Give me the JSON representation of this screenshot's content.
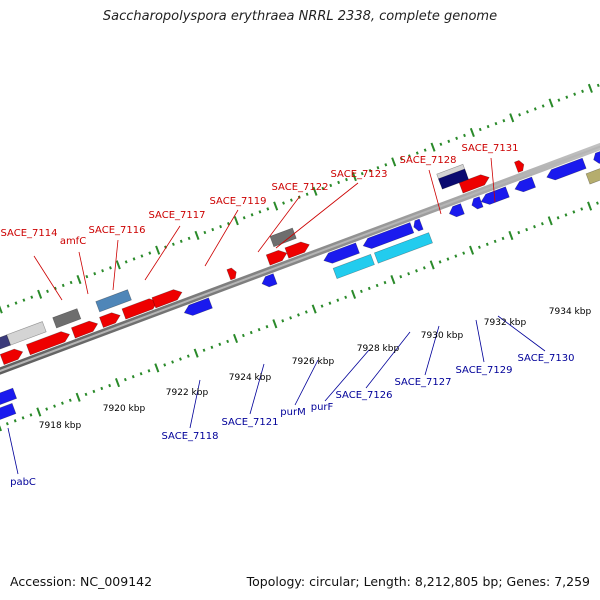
{
  "title": "Saccharopolyspora erythraea NRRL 2338, complete genome",
  "footer": {
    "accession": "Accession: NC_009142",
    "topology": "Topology: circular; Length: 8,212,805 bp; Genes: 7,259"
  },
  "colors": {
    "forward_label": "#cc0000",
    "reverse_label": "#000099",
    "tick": "#2a8a2a",
    "backbone": "#888888"
  },
  "scale_labels": [
    "7918 kbp",
    "7920 kbp",
    "7922 kbp",
    "7924 kbp",
    "7926 kbp",
    "7928 kbp",
    "7930 kbp",
    "7932 kbp",
    "7934 kbp"
  ],
  "forward_labels": [
    "SACE_7114",
    "amfC",
    "SACE_7116",
    "SACE_7117",
    "SACE_7119",
    "SACE_7122",
    "SACE_7123",
    "SACE_7128",
    "SACE_7131"
  ],
  "reverse_labels": [
    "pabC",
    "SACE_7118",
    "SACE_7121",
    "purM",
    "purF",
    "SACE_7126",
    "SACE_7127",
    "SACE_7129",
    "SACE_7130"
  ]
}
